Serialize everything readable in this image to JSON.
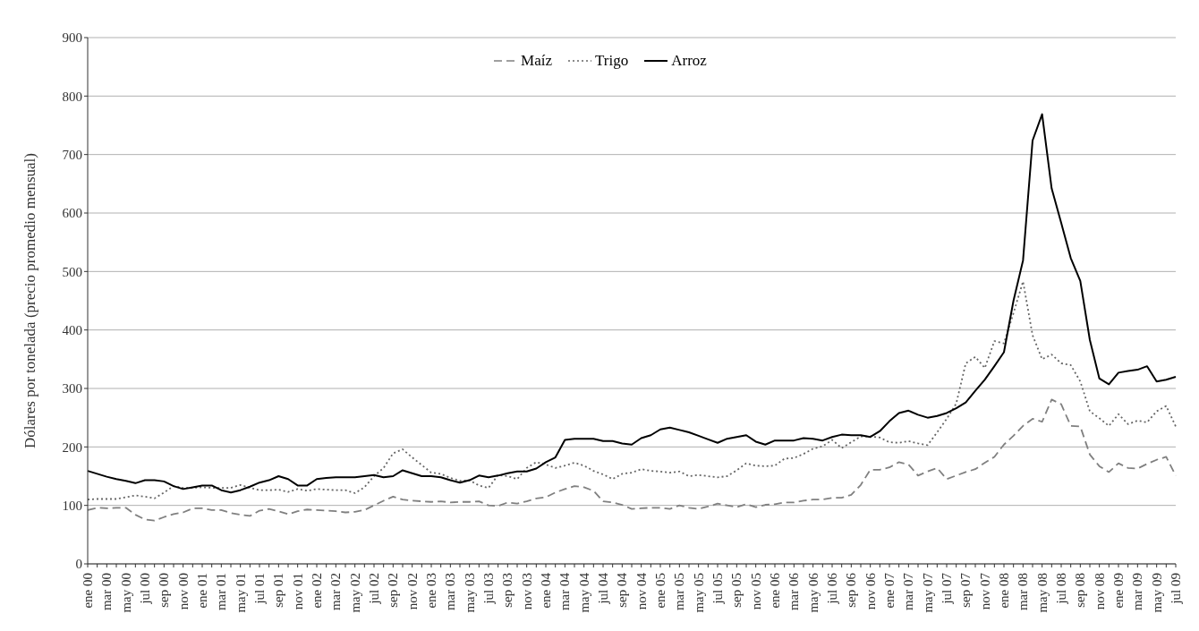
{
  "chart_data": {
    "type": "line",
    "ylabel": "Dólares por tonelada (precio promedio mensual)",
    "categories": [
      "ene 00",
      null,
      "mar 00",
      null,
      "may 00",
      null,
      "jul 00",
      null,
      "sep 00",
      null,
      "nov 00",
      null,
      "ene 01",
      null,
      "mar 01",
      null,
      "may 01",
      null,
      "jul 01",
      null,
      "sep 01",
      null,
      "nov 01",
      null,
      "ene 02",
      null,
      "mar 02",
      null,
      "may 02",
      null,
      "jul 02",
      null,
      "sep 02",
      null,
      "nov 02",
      null,
      "ene 03",
      null,
      "mar 03",
      null,
      "may 03",
      null,
      "jul 03",
      null,
      "sep 03",
      null,
      "nov 03",
      null,
      "ene 04",
      null,
      "mar 04",
      null,
      "may 04",
      null,
      "jul 04",
      null,
      "sep 04",
      null,
      "nov 04",
      null,
      "ene 05",
      null,
      "mar 05",
      null,
      "may 05",
      null,
      "jul 05",
      null,
      "sep 05",
      null,
      "nov 05",
      null,
      "ene 06",
      null,
      "mar 06",
      null,
      "may 06",
      null,
      "jul 06",
      null,
      "sep 06",
      null,
      "nov 06",
      null,
      "ene 07",
      null,
      "mar 07",
      null,
      "may 07",
      null,
      "jul 07",
      null,
      "sep 07",
      null,
      "nov 07",
      null,
      "ene 08",
      null,
      "mar 08",
      null,
      "may 08",
      null,
      "jul 08",
      null,
      "sep 08",
      null,
      "nov 08",
      null,
      "ene 09",
      null,
      "mar 09",
      null,
      "may 09",
      null,
      "jul 09"
    ],
    "series": [
      {
        "name": "Maíz",
        "color": "#808080",
        "line_style": "dashed",
        "values": [
          92,
          96,
          95,
          96,
          96,
          84,
          76,
          74,
          80,
          85,
          88,
          95,
          95,
          92,
          92,
          87,
          84,
          82,
          91,
          94,
          90,
          85,
          90,
          93,
          92,
          91,
          90,
          88,
          89,
          92,
          100,
          108,
          115,
          110,
          108,
          107,
          106,
          107,
          105,
          106,
          106,
          107,
          100,
          99,
          105,
          103,
          107,
          112,
          114,
          122,
          128,
          133,
          131,
          125,
          107,
          105,
          101,
          94,
          95,
          96,
          96,
          94,
          100,
          96,
          94,
          98,
          103,
          100,
          97,
          102,
          97,
          101,
          102,
          105,
          105,
          108,
          110,
          110,
          113,
          113,
          118,
          135,
          161,
          161,
          165,
          174,
          170,
          151,
          158,
          164,
          145,
          151,
          157,
          162,
          173,
          183,
          204,
          219,
          236,
          248,
          243,
          281,
          273,
          236,
          235,
          187,
          167,
          157,
          172,
          164,
          163,
          171,
          178,
          183,
          151
        ]
      },
      {
        "name": "Trigo",
        "color": "#666666",
        "line_style": "dotted",
        "values": [
          110,
          111,
          111,
          111,
          114,
          117,
          115,
          112,
          122,
          133,
          130,
          130,
          131,
          130,
          130,
          130,
          135,
          130,
          126,
          126,
          127,
          123,
          128,
          125,
          128,
          127,
          126,
          126,
          121,
          131,
          150,
          164,
          189,
          196,
          182,
          169,
          156,
          154,
          147,
          142,
          143,
          134,
          130,
          152,
          150,
          145,
          164,
          174,
          170,
          164,
          168,
          173,
          168,
          159,
          153,
          145,
          154,
          156,
          162,
          159,
          158,
          156,
          158,
          150,
          152,
          150,
          148,
          150,
          160,
          172,
          168,
          167,
          168,
          180,
          181,
          188,
          197,
          201,
          212,
          198,
          208,
          218,
          218,
          216,
          208,
          207,
          210,
          206,
          203,
          225,
          248,
          274,
          343,
          354,
          335,
          381,
          377,
          429,
          483,
          391,
          350,
          358,
          343,
          340,
          312,
          261,
          249,
          236,
          256,
          239,
          245,
          242,
          261,
          270,
          235
        ]
      },
      {
        "name": "Arroz",
        "color": "#000000",
        "line_style": "solid",
        "values": [
          159,
          154,
          149,
          145,
          142,
          138,
          143,
          143,
          141,
          133,
          128,
          131,
          134,
          134,
          126,
          122,
          126,
          132,
          139,
          143,
          150,
          145,
          134,
          134,
          145,
          147,
          148,
          148,
          148,
          150,
          152,
          148,
          150,
          160,
          155,
          150,
          150,
          148,
          143,
          139,
          143,
          151,
          148,
          151,
          155,
          158,
          158,
          163,
          174,
          182,
          212,
          214,
          214,
          214,
          210,
          210,
          206,
          204,
          215,
          220,
          230,
          233,
          229,
          225,
          219,
          213,
          207,
          214,
          217,
          220,
          209,
          204,
          211,
          211,
          211,
          215,
          214,
          211,
          217,
          221,
          220,
          220,
          217,
          227,
          244,
          258,
          262,
          255,
          250,
          253,
          258,
          266,
          276,
          296,
          315,
          338,
          362,
          450,
          519,
          724,
          769,
          642,
          583,
          523,
          484,
          383,
          317,
          307,
          327,
          330,
          332,
          338,
          312,
          315,
          320
        ]
      }
    ],
    "ylim": [
      0,
      900
    ],
    "yticks": [
      0,
      100,
      200,
      300,
      400,
      500,
      600,
      700,
      800,
      900
    ],
    "grid": "y",
    "legend": "top",
    "marker": "none"
  }
}
